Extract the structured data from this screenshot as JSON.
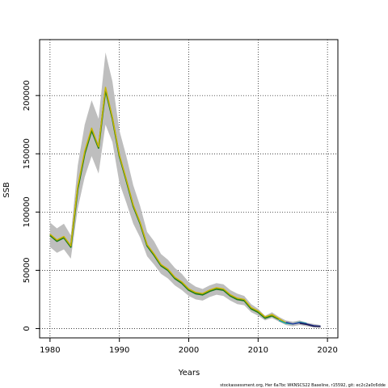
{
  "chart_data": {
    "type": "line",
    "title": "",
    "xlabel": "Years",
    "ylabel": "SSB",
    "xlim": [
      1978.5,
      2021.5
    ],
    "ylim": [
      -8000,
      248000
    ],
    "xticks": [
      1980,
      1990,
      2000,
      2010,
      2020
    ],
    "yticks": [
      0,
      50000,
      100000,
      150000,
      200000
    ],
    "grid": true,
    "grid_style": "dotted",
    "band_color": "#bebebe",
    "footer": "stockassessment.org, Her 6a7bc WKNSCS22 Baseline, r15592, git: ec2c2a0c6dde",
    "band": {
      "x": [
        1980,
        1981,
        1982,
        1983,
        1984,
        1985,
        1986,
        1987,
        1988,
        1989,
        1990,
        1991,
        1992,
        1993,
        1994,
        1995,
        1996,
        1997,
        1998,
        1999,
        2000,
        2001,
        2002,
        2003,
        2004,
        2005,
        2006,
        2007,
        2008,
        2009,
        2010,
        2011,
        2012,
        2013,
        2014,
        2015,
        2016,
        2017,
        2018,
        2019
      ],
      "upper": [
        91000,
        86000,
        90000,
        80000,
        140000,
        175000,
        196000,
        180000,
        237000,
        212000,
        170000,
        148000,
        123000,
        105000,
        83000,
        75000,
        64000,
        59000,
        52000,
        47000,
        40000,
        36000,
        34000,
        37000,
        39000,
        38000,
        33000,
        30000,
        28000,
        21000,
        17000,
        11000,
        14000,
        10000,
        7000,
        6000,
        7000,
        5000,
        4000,
        3000
      ],
      "lower": [
        70000,
        65000,
        68000,
        60000,
        103000,
        130000,
        148000,
        133000,
        175000,
        160000,
        125000,
        108000,
        90000,
        78000,
        62000,
        55000,
        47000,
        43000,
        37000,
        33000,
        28000,
        25000,
        24000,
        27000,
        29000,
        28000,
        24000,
        21000,
        20000,
        14000,
        11000,
        7000,
        9000,
        6000,
        3000,
        2000,
        3000,
        2000,
        1000,
        500
      ]
    },
    "series": [
      {
        "name": "",
        "color": "#1e7b1e",
        "x": [
          1980,
          1981,
          1982,
          1983,
          1984,
          1985,
          1986,
          1987,
          1988,
          1989,
          1990,
          1991,
          1992,
          1993,
          1994,
          1995,
          1996,
          1997,
          1998,
          1999,
          2000,
          2001,
          2002,
          2003,
          2004,
          2005,
          2006,
          2007,
          2008,
          2009,
          2010,
          2011,
          2012,
          2013
        ],
        "y": [
          80000,
          75000,
          78000,
          70000,
          120000,
          150000,
          170000,
          155000,
          205000,
          180000,
          148000,
          127000,
          105000,
          90000,
          71000,
          63000,
          54000,
          50000,
          43000,
          39000,
          33000,
          30000,
          29000,
          32000,
          34000,
          33000,
          28000,
          25000,
          24000,
          17000,
          14000,
          9000,
          11000,
          8000
        ]
      },
      {
        "name": "",
        "color": "#c8b400",
        "x": [
          1980,
          1981,
          1982,
          1983,
          1984,
          1985,
          1986,
          1987,
          1988,
          1989,
          1990,
          1991,
          1992,
          1993,
          1994,
          1995,
          1996,
          1997,
          1998,
          1999,
          2000,
          2001,
          2002,
          2003,
          2004,
          2005,
          2006,
          2007,
          2008,
          2009,
          2010,
          2011,
          2012,
          2013,
          2014
        ],
        "y": [
          81000,
          76000,
          79000,
          71000,
          122000,
          152000,
          172000,
          156000,
          207000,
          181000,
          149000,
          128000,
          106000,
          91000,
          72000,
          64000,
          55000,
          51000,
          44000,
          40000,
          34000,
          31000,
          30000,
          33000,
          35000,
          34000,
          29000,
          26000,
          25000,
          18000,
          15000,
          10000,
          12000,
          8500,
          5000
        ]
      },
      {
        "name": "",
        "color": "#17a2a0",
        "x": [
          2013,
          2014,
          2015,
          2016,
          2017
        ],
        "y": [
          7000,
          4500,
          4000,
          5500,
          4500
        ]
      },
      {
        "name": "",
        "color": "#2a3f9e",
        "x": [
          2014,
          2015,
          2016,
          2017,
          2018,
          2019
        ],
        "y": [
          5500,
          4000,
          5000,
          4000,
          2500,
          2000
        ]
      },
      {
        "name": "",
        "color": "#1c1c5a",
        "x": [
          2016,
          2017,
          2018,
          2019
        ],
        "y": [
          4500,
          3500,
          2000,
          1800
        ]
      }
    ]
  }
}
